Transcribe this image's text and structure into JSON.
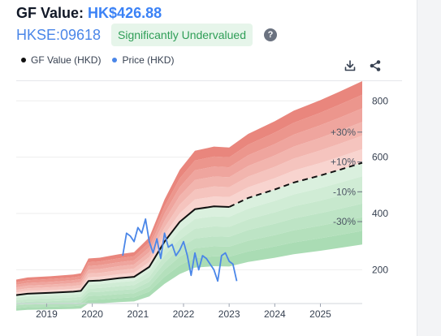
{
  "header": {
    "title_label": "GF Value:",
    "title_value": "HK$426.88",
    "ticker": "HKSE:09618",
    "badge": "Significantly Undervalued",
    "help_glyph": "?"
  },
  "legend": {
    "items": [
      {
        "label": "GF Value (HKD)",
        "color": "#111111"
      },
      {
        "label": "Price (HKD)",
        "color": "#4a86e8"
      }
    ]
  },
  "toolbar": {
    "download_icon": "download-icon",
    "share_icon": "share-icon"
  },
  "colors": {
    "gf_value_line": "#111111",
    "price_line": "#4a86e8",
    "band_red_dark": "#e9867d",
    "band_red_light": "#fbe3df",
    "band_green_light": "#e3f4e6",
    "band_green_dark": "#aadcb4",
    "accent_blue": "#3b82f6",
    "badge_green": "#2f9e57"
  },
  "chart_data": {
    "type": "line",
    "x_ticks": [
      "2019",
      "2020",
      "2021",
      "2022",
      "2023",
      "2024",
      "2025"
    ],
    "y_ticks": [
      200,
      400,
      600,
      800
    ],
    "ylim": [
      80,
      870
    ],
    "xlim": [
      "2018-05",
      "2025-12"
    ],
    "band_labels": [
      "+30%",
      "+10%",
      "-10%",
      "-30%"
    ],
    "band_multipliers": [
      1.3,
      1.1,
      0.9,
      0.7
    ],
    "series": [
      {
        "name": "GF Value (HKD)",
        "style": "solid",
        "x": [
          "2018-05",
          "2018-08",
          "2019-02",
          "2019-08",
          "2019-10",
          "2019-12",
          "2020-03",
          "2020-08",
          "2020-12",
          "2021-04",
          "2021-08",
          "2021-12",
          "2022-04",
          "2022-09",
          "2023-01"
        ],
        "y": [
          110,
          115,
          118,
          122,
          125,
          160,
          162,
          170,
          175,
          210,
          300,
          370,
          415,
          425,
          423
        ]
      },
      {
        "name": "GF Value (HKD) estimate",
        "style": "dashed",
        "x": [
          "2023-01",
          "2023-06",
          "2024-01",
          "2024-06",
          "2025-01",
          "2025-06",
          "2025-12"
        ],
        "y": [
          423,
          455,
          485,
          510,
          535,
          555,
          580
        ]
      },
      {
        "name": "Price (HKD)",
        "x": [
          "2020-09",
          "2020-10",
          "2020-11",
          "2020-12",
          "2021-01",
          "2021-02",
          "2021-03",
          "2021-04",
          "2021-05",
          "2021-06",
          "2021-07",
          "2021-08",
          "2021-09",
          "2021-10",
          "2021-11",
          "2021-12",
          "2022-01",
          "2022-02",
          "2022-03",
          "2022-04",
          "2022-05",
          "2022-06",
          "2022-07",
          "2022-08",
          "2022-09",
          "2022-10",
          "2022-11",
          "2022-12",
          "2023-01",
          "2023-02",
          "2023-03"
        ],
        "y": [
          250,
          330,
          320,
          300,
          350,
          330,
          380,
          300,
          260,
          310,
          240,
          330,
          280,
          290,
          250,
          270,
          300,
          250,
          180,
          260,
          200,
          250,
          240,
          220,
          200,
          160,
          250,
          260,
          230,
          220,
          160
        ]
      }
    ]
  }
}
